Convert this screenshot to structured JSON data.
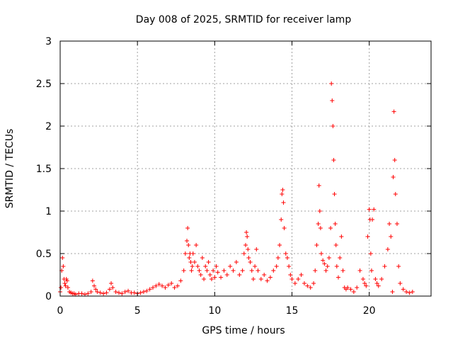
{
  "chart_data": {
    "type": "scatter",
    "title": "Day 008 of 2025, SRMTID for receiver lamp",
    "xlabel": "GPS time / hours",
    "ylabel": "SRMTID / TECUs",
    "xlim": [
      0,
      24
    ],
    "ylim": [
      0,
      3
    ],
    "xticks": [
      0,
      5,
      10,
      15,
      20
    ],
    "xtick_labels": [
      "0",
      "5",
      "10",
      "15",
      "20"
    ],
    "yticks": [
      0,
      0.5,
      1,
      1.5,
      2,
      2.5,
      3
    ],
    "ytick_labels": [
      "0",
      "0.5",
      "1",
      "1.5",
      "2",
      "2.5",
      "3"
    ],
    "grid": true,
    "marker": "plus",
    "color": "#ff0000",
    "series": [
      {
        "name": "SRMTID",
        "x": [
          0.0,
          0.05,
          0.1,
          0.15,
          0.2,
          0.25,
          0.3,
          0.35,
          0.4,
          0.45,
          0.5,
          0.6,
          0.7,
          0.8,
          0.9,
          1.0,
          1.2,
          1.4,
          1.6,
          1.8,
          2.0,
          2.1,
          2.2,
          2.3,
          2.4,
          2.6,
          2.8,
          3.0,
          3.2,
          3.3,
          3.4,
          3.6,
          3.8,
          4.0,
          4.2,
          4.4,
          4.6,
          4.8,
          5.0,
          5.2,
          5.4,
          5.6,
          5.8,
          6.0,
          6.2,
          6.4,
          6.6,
          6.8,
          7.0,
          7.2,
          7.4,
          7.6,
          7.8,
          8.0,
          8.1,
          8.2,
          8.25,
          8.3,
          8.35,
          8.4,
          8.45,
          8.5,
          8.55,
          8.6,
          8.7,
          8.8,
          8.9,
          9.0,
          9.1,
          9.2,
          9.3,
          9.4,
          9.5,
          9.6,
          9.7,
          9.8,
          9.9,
          10.0,
          10.1,
          10.2,
          10.4,
          10.6,
          10.8,
          11.0,
          11.2,
          11.4,
          11.6,
          11.8,
          11.9,
          12.0,
          12.05,
          12.1,
          12.15,
          12.2,
          12.3,
          12.4,
          12.5,
          12.6,
          12.7,
          12.8,
          13.0,
          13.2,
          13.4,
          13.6,
          13.8,
          14.0,
          14.1,
          14.2,
          14.3,
          14.35,
          14.4,
          14.45,
          14.5,
          14.6,
          14.7,
          14.8,
          14.9,
          15.0,
          15.2,
          15.4,
          15.6,
          15.8,
          16.0,
          16.2,
          16.4,
          16.5,
          16.6,
          16.7,
          16.75,
          16.8,
          16.85,
          16.9,
          17.0,
          17.1,
          17.2,
          17.3,
          17.4,
          17.5,
          17.55,
          17.6,
          17.65,
          17.7,
          17.75,
          17.8,
          17.85,
          17.9,
          18.0,
          18.1,
          18.2,
          18.3,
          18.4,
          18.5,
          18.6,
          18.8,
          19.0,
          19.2,
          19.4,
          19.6,
          19.7,
          19.8,
          19.9,
          20.0,
          20.05,
          20.1,
          20.15,
          20.2,
          20.3,
          20.4,
          20.5,
          20.6,
          20.8,
          21.0,
          21.2,
          21.3,
          21.4,
          21.5,
          21.55,
          21.6,
          21.65,
          21.7,
          21.8,
          21.9,
          22.0,
          22.2,
          22.4,
          22.6,
          22.8
        ],
        "y": [
          0.05,
          0.1,
          0.3,
          0.45,
          0.35,
          0.2,
          0.15,
          0.12,
          0.2,
          0.18,
          0.1,
          0.05,
          0.04,
          0.03,
          0.03,
          0.02,
          0.03,
          0.03,
          0.02,
          0.03,
          0.05,
          0.18,
          0.12,
          0.08,
          0.05,
          0.04,
          0.03,
          0.04,
          0.08,
          0.15,
          0.1,
          0.05,
          0.04,
          0.03,
          0.05,
          0.06,
          0.04,
          0.04,
          0.03,
          0.04,
          0.05,
          0.06,
          0.08,
          0.1,
          0.12,
          0.14,
          0.12,
          0.1,
          0.13,
          0.15,
          0.1,
          0.12,
          0.18,
          0.3,
          0.5,
          0.65,
          0.8,
          0.6,
          0.45,
          0.5,
          0.4,
          0.3,
          0.35,
          0.5,
          0.4,
          0.6,
          0.35,
          0.3,
          0.25,
          0.45,
          0.2,
          0.35,
          0.3,
          0.4,
          0.25,
          0.2,
          0.3,
          0.22,
          0.35,
          0.28,
          0.22,
          0.3,
          0.25,
          0.35,
          0.3,
          0.4,
          0.25,
          0.3,
          0.5,
          0.6,
          0.75,
          0.7,
          0.55,
          0.45,
          0.4,
          0.3,
          0.2,
          0.35,
          0.55,
          0.3,
          0.2,
          0.25,
          0.18,
          0.22,
          0.3,
          0.35,
          0.45,
          0.6,
          0.9,
          1.2,
          1.25,
          1.1,
          0.8,
          0.5,
          0.45,
          0.35,
          0.25,
          0.2,
          0.15,
          0.2,
          0.25,
          0.15,
          0.12,
          0.1,
          0.15,
          0.3,
          0.6,
          0.85,
          1.3,
          1.0,
          0.8,
          0.5,
          0.42,
          0.38,
          0.3,
          0.35,
          0.45,
          0.8,
          2.5,
          2.3,
          2.0,
          1.6,
          1.2,
          0.85,
          0.6,
          0.35,
          0.22,
          0.45,
          0.7,
          0.3,
          0.1,
          0.08,
          0.1,
          0.08,
          0.05,
          0.1,
          0.3,
          0.2,
          0.15,
          0.12,
          0.7,
          1.02,
          0.9,
          0.5,
          0.3,
          0.9,
          1.02,
          0.2,
          0.15,
          0.12,
          0.2,
          0.35,
          0.55,
          0.85,
          0.7,
          0.05,
          1.4,
          2.17,
          1.6,
          1.2,
          0.85,
          0.35,
          0.15,
          0.08,
          0.05,
          0.04,
          0.05
        ]
      }
    ]
  }
}
